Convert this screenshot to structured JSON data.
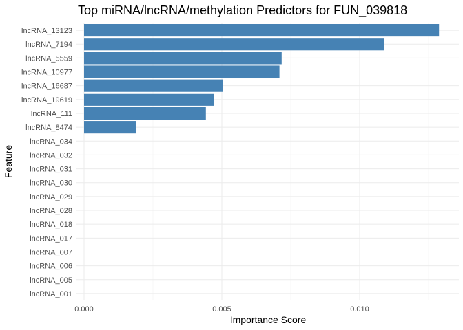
{
  "chart_data": {
    "type": "bar",
    "orientation": "horizontal",
    "title": "Top miRNA/lncRNA/methylation Predictors for FUN_039818",
    "xlabel": "Importance Score",
    "ylabel": "Feature",
    "xlim": [
      -0.0003,
      0.0136
    ],
    "x_ticks": [
      0.0,
      0.005,
      0.01
    ],
    "x_tick_labels": [
      "0.000",
      "0.005",
      "0.010"
    ],
    "grid": true,
    "legend": "none",
    "bar_color": "#4682b4",
    "categories": [
      "lncRNA_13123",
      "lncRNA_7194",
      "lncRNA_5559",
      "lncRNA_10977",
      "lncRNA_16687",
      "lncRNA_19619",
      "lncRNA_111",
      "lncRNA_8474",
      "lncRNA_034",
      "lncRNA_032",
      "lncRNA_031",
      "lncRNA_030",
      "lncRNA_029",
      "lncRNA_028",
      "lncRNA_018",
      "lncRNA_017",
      "lncRNA_007",
      "lncRNA_006",
      "lncRNA_005",
      "lncRNA_001"
    ],
    "values": [
      0.01288,
      0.0109,
      0.00717,
      0.00709,
      0.00505,
      0.00472,
      0.00442,
      0.0019,
      0,
      0,
      0,
      0,
      0,
      0,
      0,
      0,
      0,
      0,
      0,
      0
    ]
  }
}
